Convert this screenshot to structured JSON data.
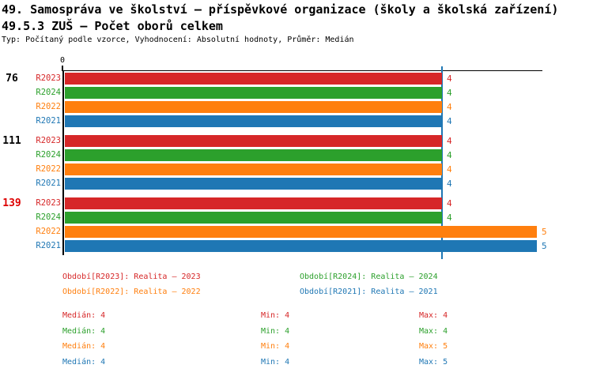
{
  "header": {
    "title_line1": "49. Samospráva ve školství – příspěvkové organizace (školy a školská zařízení)",
    "title_line2": "49.5.3 ZUŠ – Počet oborů celkem",
    "subtitle": "Typ: Počítaný podle vzorce, Vyhodnocení: Absolutní hodnoty, Průměr: Medián"
  },
  "chart_data": {
    "type": "bar",
    "orientation": "horizontal",
    "title": "49.5.3 ZUŠ – Počet oborů celkem",
    "x_axis": {
      "min": 0,
      "origin_tick_label": "0"
    },
    "series_colors": {
      "R2023": "#d62728",
      "R2024": "#2ca02c",
      "R2022": "#ff7f0e",
      "R2021": "#1f77b4"
    },
    "groups": [
      {
        "label": "76",
        "label_color": "#000000",
        "bars": [
          {
            "series": "R2023",
            "value": 4
          },
          {
            "series": "R2024",
            "value": 4
          },
          {
            "series": "R2022",
            "value": 4
          },
          {
            "series": "R2021",
            "value": 4
          }
        ]
      },
      {
        "label": "111",
        "label_color": "#000000",
        "bars": [
          {
            "series": "R2023",
            "value": 4
          },
          {
            "series": "R2024",
            "value": 4
          },
          {
            "series": "R2022",
            "value": 4
          },
          {
            "series": "R2021",
            "value": 4
          }
        ]
      },
      {
        "label": "139",
        "label_color": "#dd0000",
        "bars": [
          {
            "series": "R2023",
            "value": 4
          },
          {
            "series": "R2024",
            "value": 4
          },
          {
            "series": "R2022",
            "value": 5
          },
          {
            "series": "R2021",
            "value": 5
          }
        ]
      }
    ],
    "median_line": {
      "value": 4,
      "color": "#1f77b4"
    }
  },
  "legend": {
    "items": [
      {
        "label": "Období[R2023]: Realita – 2023",
        "color": "#d62728",
        "col": 0,
        "row": 0
      },
      {
        "label": "Období[R2024]: Realita – 2024",
        "color": "#2ca02c",
        "col": 1,
        "row": 0
      },
      {
        "label": "Období[R2022]: Realita – 2022",
        "color": "#ff7f0e",
        "col": 0,
        "row": 1
      },
      {
        "label": "Období[R2021]: Realita – 2021",
        "color": "#1f77b4",
        "col": 1,
        "row": 1
      }
    ]
  },
  "stats": {
    "labels": {
      "median": "Medián",
      "min": "Min",
      "max": "Max"
    },
    "rows": [
      {
        "series": "R2023",
        "color": "#d62728",
        "median": 4,
        "min": 4,
        "max": 4
      },
      {
        "series": "R2024",
        "color": "#2ca02c",
        "median": 4,
        "min": 4,
        "max": 4
      },
      {
        "series": "R2022",
        "color": "#ff7f0e",
        "median": 4,
        "min": 4,
        "max": 5
      },
      {
        "series": "R2021",
        "color": "#1f77b4",
        "median": 4,
        "min": 4,
        "max": 5
      }
    ]
  }
}
